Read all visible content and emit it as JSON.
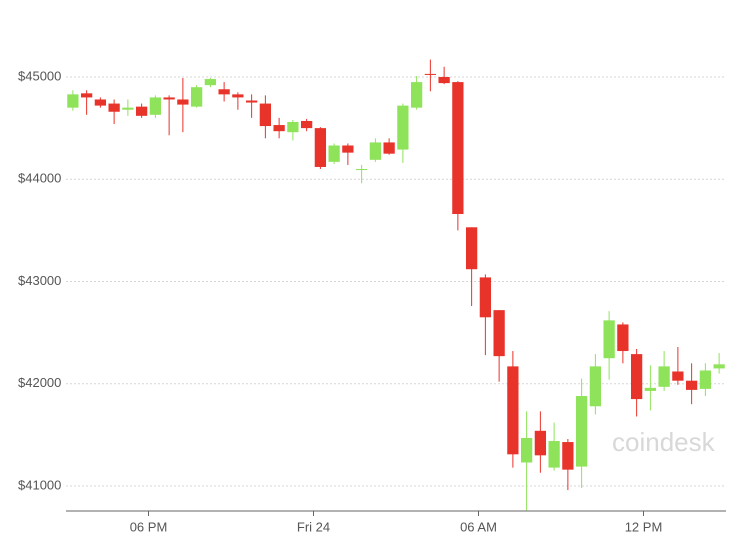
{
  "chart_data": {
    "type": "candlestick",
    "watermark": "coindesk",
    "up_color": "#8fe35a",
    "down_color": "#e8332b",
    "grid": true,
    "x": [
      15.25,
      15.75,
      16.25,
      16.75,
      17.25,
      17.75,
      18.25,
      18.75,
      19.25,
      19.75,
      20.25,
      20.75,
      21.25,
      21.75,
      22.25,
      22.75,
      23.25,
      23.75,
      24.25,
      24.75,
      25.25,
      25.75,
      26.25,
      26.75,
      27.25,
      27.75,
      28.25,
      28.75,
      29.25,
      29.75,
      30.25,
      30.75,
      31.25,
      31.75,
      32.25,
      32.75,
      33.25,
      33.75,
      34.25,
      34.75,
      35.25,
      35.75,
      36.25,
      36.75,
      37.25,
      37.75,
      38.25,
      38.75
    ],
    "open": [
      44700,
      44840,
      44780,
      44740,
      44680,
      44710,
      44630,
      44800,
      44780,
      44710,
      44920,
      44880,
      44830,
      44770,
      44740,
      44530,
      44460,
      44570,
      44500,
      44170,
      44330,
      44090,
      44190,
      44360,
      44290,
      44700,
      45030,
      45000,
      44950,
      43530,
      43040,
      42720,
      42170,
      41230,
      41540,
      41180,
      41430,
      41190,
      41780,
      42250,
      42580,
      42290,
      41930,
      41970,
      42120,
      42030,
      41950,
      42150
    ],
    "high": [
      44870,
      44870,
      44800,
      44780,
      44780,
      44740,
      44820,
      44820,
      44990,
      44920,
      44990,
      44950,
      44850,
      44830,
      44820,
      44600,
      44580,
      44590,
      44510,
      44350,
      44350,
      44140,
      44400,
      44400,
      44740,
      45010,
      45170,
      45100,
      44960,
      43530,
      43070,
      42720,
      42320,
      41730,
      41730,
      41620,
      41460,
      42050,
      42290,
      42710,
      42600,
      42340,
      42180,
      42320,
      42360,
      42200,
      42200,
      42300
    ],
    "low": [
      44670,
      44630,
      44700,
      44540,
      44620,
      44600,
      44600,
      44430,
      44460,
      44700,
      44900,
      44760,
      44680,
      44600,
      44400,
      44400,
      44380,
      44470,
      44100,
      44150,
      44140,
      43960,
      44170,
      44240,
      44160,
      44680,
      44860,
      44930,
      43500,
      42760,
      42280,
      42020,
      41180,
      40760,
      41130,
      41150,
      40960,
      40980,
      41700,
      42040,
      42200,
      41680,
      41740,
      41930,
      41990,
      41800,
      41880,
      42100
    ],
    "close": [
      44830,
      44800,
      44720,
      44660,
      44700,
      44620,
      44800,
      44780,
      44730,
      44900,
      44980,
      44830,
      44800,
      44750,
      44520,
      44470,
      44560,
      44500,
      44120,
      44330,
      44260,
      44100,
      44360,
      44250,
      44720,
      44950,
      45020,
      44940,
      43660,
      43120,
      42650,
      42270,
      41310,
      41470,
      41300,
      41440,
      41160,
      41880,
      42170,
      42620,
      42320,
      41850,
      41960,
      42170,
      42030,
      41940,
      42130,
      42190
    ],
    "xlim": [
      15,
      39
    ],
    "xticks": [
      {
        "value": 18,
        "label": "06 PM"
      },
      {
        "value": 24,
        "label": "Fri 24"
      },
      {
        "value": 30,
        "label": "06 AM"
      },
      {
        "value": 36,
        "label": "12 PM"
      }
    ],
    "ylim": [
      40700,
      45300
    ],
    "yticks": [
      {
        "value": 41000,
        "label": "$41000"
      },
      {
        "value": 42000,
        "label": "$42000"
      },
      {
        "value": 43000,
        "label": "$43000"
      },
      {
        "value": 44000,
        "label": "$44000"
      },
      {
        "value": 45000,
        "label": "$45000"
      }
    ]
  }
}
